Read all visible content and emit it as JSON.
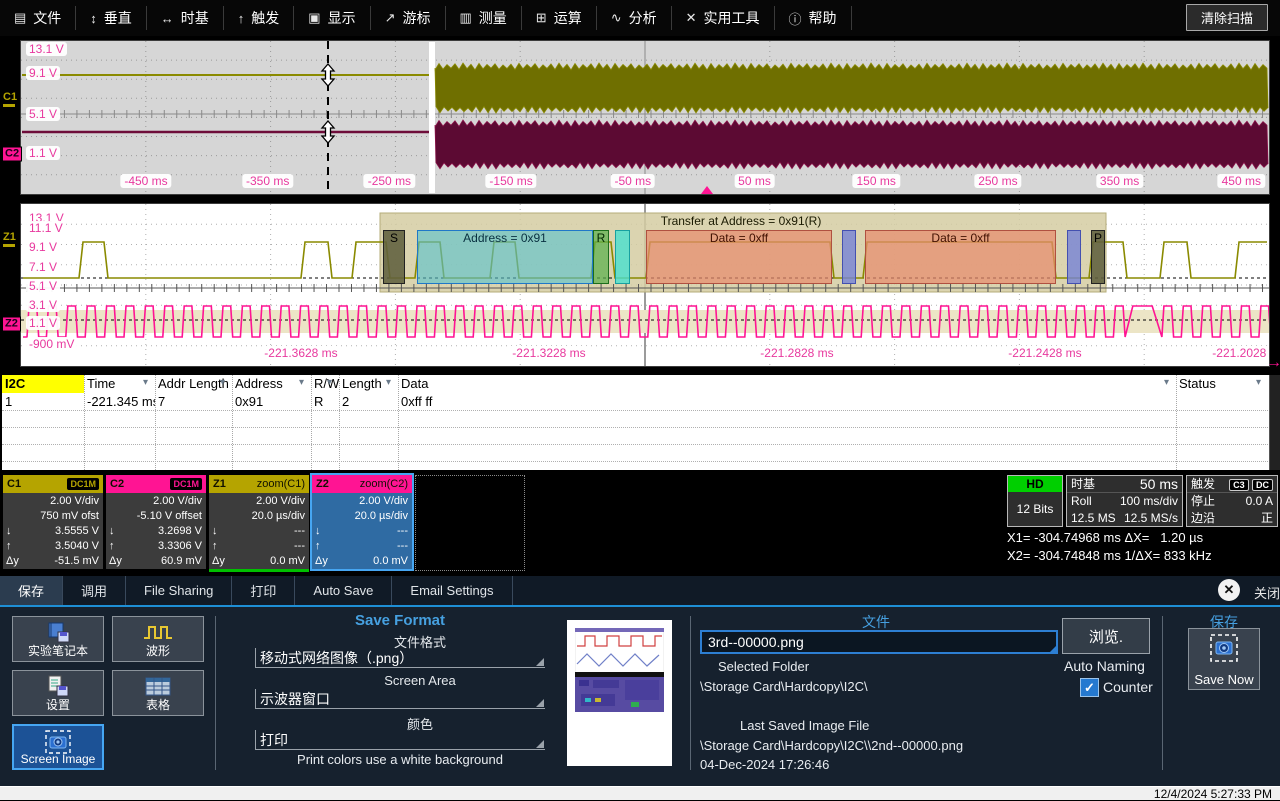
{
  "menu": {
    "items": [
      {
        "name": "file",
        "icon": "▤",
        "label": "文件"
      },
      {
        "name": "vertical",
        "icon": "↕",
        "label": "垂直"
      },
      {
        "name": "timebase",
        "icon": "↔",
        "label": "时基"
      },
      {
        "name": "trigger",
        "icon": "↑",
        "label": "触发"
      },
      {
        "name": "display",
        "icon": "▣",
        "label": "显示"
      },
      {
        "name": "cursors",
        "icon": "↗",
        "label": "游标"
      },
      {
        "name": "measure",
        "icon": "▥",
        "label": "测量"
      },
      {
        "name": "math",
        "icon": "⊞",
        "label": "运算"
      },
      {
        "name": "analysis",
        "icon": "∿",
        "label": "分析"
      },
      {
        "name": "utilities",
        "icon": "✕",
        "label": "实用工具"
      },
      {
        "name": "help",
        "icon": "ⓘ",
        "label": "帮助"
      }
    ],
    "clear_sweeps": "清除扫描"
  },
  "grid1": {
    "volt_labels": [
      "13.1 V",
      "9.1 V",
      "5.1 V",
      "1.1 V"
    ],
    "channel_markers": [
      "C1",
      "C2"
    ],
    "time_labels": [
      "-450 ms",
      "-350 ms",
      "-250 ms",
      "-150 ms",
      "-50 ms",
      "50 ms",
      "150 ms",
      "250 ms",
      "350 ms",
      "450 ms"
    ]
  },
  "grid2": {
    "volt_labels": [
      "13.1 V",
      "11.1 V",
      "9.1 V",
      "7.1 V",
      "5.1 V",
      "3.1 V",
      "1.1 V",
      "-900 mV"
    ],
    "channel_markers": [
      "Z1",
      "Z2"
    ],
    "time_labels": [
      "-221.3628 ms",
      "-221.3228 ms",
      "-221.2828 ms",
      "-221.2428 ms",
      "-221.2028 ms"
    ],
    "decode": {
      "transfer_label": "Transfer at Address = 0x91(R)",
      "box_labels": [
        "S",
        "Address = 0x91",
        "R",
        "",
        "Data = 0xff",
        "",
        "Data = 0xff",
        "",
        "P"
      ]
    }
  },
  "table": {
    "headers": [
      "I2C",
      "Time",
      "Addr Length",
      "Address",
      "R/W",
      "Length",
      "Data",
      "Status"
    ],
    "rows": [
      [
        "1",
        "-221.345 ms",
        "7",
        "0x91",
        "R",
        "2",
        "0xff ff",
        ""
      ]
    ]
  },
  "descriptors": [
    {
      "title": "C1",
      "badge": "DC1M",
      "subtitle": "",
      "header_color": "#b5a400",
      "body_color": "#3c3c3c",
      "lines": [
        "2.00 V/div",
        "750 mV ofst"
      ],
      "stats": [
        {
          "sym": "↓",
          "val": "3.5555 V"
        },
        {
          "sym": "↑",
          "val": "3.5040 V"
        },
        {
          "sym": "Δy",
          "val": "-51.5 mV"
        }
      ]
    },
    {
      "title": "C2",
      "badge": "DC1M",
      "subtitle": "",
      "header_color": "#ff1493",
      "body_color": "#3c3c3c",
      "lines": [
        "2.00 V/div",
        "-5.10 V offset"
      ],
      "stats": [
        {
          "sym": "↓",
          "val": "3.2698 V"
        },
        {
          "sym": "↑",
          "val": "3.3306 V"
        },
        {
          "sym": "Δy",
          "val": "60.9 mV"
        }
      ]
    },
    {
      "title": "Z1",
      "badge": "",
      "subtitle": "zoom(C1)",
      "header_color": "#b5a400",
      "body_color": "#3c3c3c",
      "underline": "#00c000",
      "lines": [
        "2.00 V/div",
        "20.0 µs/div"
      ],
      "stats": [
        {
          "sym": "↓",
          "val": "---"
        },
        {
          "sym": "↑",
          "val": "---"
        },
        {
          "sym": "Δy",
          "val": "0.0 mV"
        }
      ]
    },
    {
      "title": "Z2",
      "badge": "",
      "subtitle": "zoom(C2)",
      "header_color": "#ff1493",
      "body_color": "#2f6ba3",
      "selected": true,
      "lines": [
        "2.00 V/div",
        "20.0 µs/div"
      ],
      "stats": [
        {
          "sym": "↓",
          "val": "---"
        },
        {
          "sym": "↑",
          "val": "---"
        },
        {
          "sym": "Δy",
          "val": "0.0 mV"
        }
      ]
    }
  ],
  "info": {
    "hd": {
      "title": "HD",
      "value": "12 Bits",
      "header_color": "#00cf00"
    },
    "timebase": {
      "title": "时基",
      "value": "50 ms",
      "mode": "Roll",
      "scale": "100 ms/div",
      "samples": "12.5 MS",
      "rate": "12.5 MS/s"
    },
    "trigger": {
      "title": "触发",
      "badge1": "C3",
      "badge2": "DC",
      "state_label": "停止",
      "state_value": "0.0 A",
      "edge_label": "边沿",
      "edge_value": "正"
    }
  },
  "cursors": {
    "x1_label": "X1= -304.74968 ms",
    "dx_label": "ΔX=",
    "dx_value": "1.20 µs",
    "x2_label": "X2= -304.74848 ms",
    "fdx_label": "1/ΔX=",
    "fdx_value": "833 kHz"
  },
  "dialog": {
    "tabs": [
      "保存",
      "调用",
      "File Sharing",
      "打印",
      "Auto Save",
      "Email Settings"
    ],
    "active_tab": "保存",
    "close_label": "关闭",
    "buttons": [
      "实验笔记本",
      "波形",
      "设置",
      "表格",
      "Screen Image"
    ],
    "selected_button": "Screen Image",
    "save_format": {
      "title": "Save Format",
      "file_format_label": "文件格式",
      "file_format_value": "移动式网络图像（.png）",
      "screen_area_label": "Screen Area",
      "screen_area_value": "示波器窗口",
      "color_label": "颜色",
      "color_value": "打印",
      "note": "Print colors use a white background"
    },
    "file": {
      "header": "文件",
      "filename": "3rd--00000.png",
      "selected_folder_label": "Selected Folder",
      "selected_folder": "\\Storage Card\\Hardcopy\\I2C\\",
      "browse": "浏览.",
      "auto_naming": "Auto Naming",
      "counter": "Counter",
      "last_saved_label": "Last Saved Image File",
      "last_saved_path": "\\Storage Card\\Hardcopy\\I2C\\\\2nd--00000.png",
      "last_saved_time": "04-Dec-2024 17:26:46"
    },
    "save": {
      "header": "保存",
      "button": "Save Now"
    }
  },
  "status": {
    "datetime": "12/4/2024 5:27:33 PM"
  },
  "colors": {
    "c1": "#8a8a00",
    "c2": "#ff1493",
    "c2_dense": "#5c0a33",
    "accent_blue": "#46a0e0",
    "pink_label": "#e8399e"
  }
}
